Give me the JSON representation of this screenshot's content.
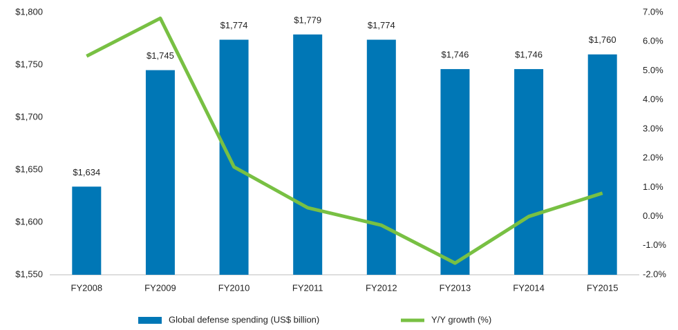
{
  "chart_data": {
    "type": "bar",
    "categories": [
      "FY2008",
      "FY2009",
      "FY2010",
      "FY2011",
      "FY2012",
      "FY2013",
      "FY2014",
      "FY2015"
    ],
    "series": [
      {
        "name": "Global defense spending (US$ billion)",
        "type": "bar",
        "color": "#0077b6",
        "values": [
          1634,
          1745,
          1774,
          1779,
          1774,
          1746,
          1746,
          1760
        ],
        "value_labels": [
          "$1,634",
          "$1,745",
          "$1,774",
          "$1,779",
          "$1,774",
          "$1,746",
          "$1,746",
          "$1,760"
        ]
      },
      {
        "name": "Y/Y growth (%)",
        "type": "line",
        "axis": "y2",
        "color": "#78c043",
        "values": [
          5.5,
          6.8,
          1.7,
          0.3,
          -0.3,
          -1.6,
          0.0,
          0.8
        ]
      }
    ],
    "ylim": [
      1550,
      1800
    ],
    "yticks": [
      {
        "value": 1550,
        "label": "$1,550"
      },
      {
        "value": 1600,
        "label": "$1,600"
      },
      {
        "value": 1650,
        "label": "$1,650"
      },
      {
        "value": 1700,
        "label": "$1,700"
      },
      {
        "value": 1750,
        "label": "$1,750"
      },
      {
        "value": 1800,
        "label": "$1,800"
      }
    ],
    "y2lim": [
      -2,
      7
    ],
    "y2ticks": [
      {
        "value": -2,
        "label": "-2.0%"
      },
      {
        "value": -1,
        "label": "-1.0%"
      },
      {
        "value": 0,
        "label": "0.0%"
      },
      {
        "value": 1,
        "label": "1.0%"
      },
      {
        "value": 2,
        "label": "2.0%"
      },
      {
        "value": 3,
        "label": "3.0%"
      },
      {
        "value": 4,
        "label": "4.0%"
      },
      {
        "value": 5,
        "label": "5.0%"
      },
      {
        "value": 6,
        "label": "6.0%"
      },
      {
        "value": 7,
        "label": "7.0%"
      }
    ],
    "legend": "bottom"
  }
}
